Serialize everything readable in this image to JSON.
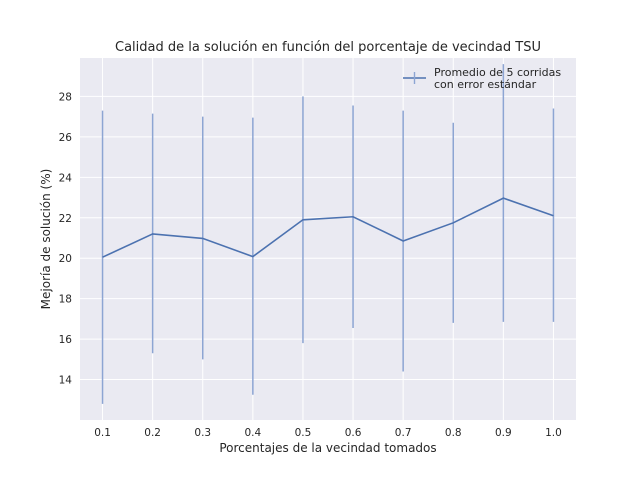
{
  "chart_data": {
    "type": "line",
    "title": "Calidad de la solución en función del porcentaje de vecindad TSU",
    "xlabel": "Porcentajes de la vecindad tomados",
    "ylabel": "Mejoría de solución (%)",
    "x": [
      0.1,
      0.2,
      0.3,
      0.4,
      0.5,
      0.6,
      0.7,
      0.8,
      0.9,
      1.0
    ],
    "x_tick_labels": [
      "0.1",
      "0.2",
      "0.3",
      "0.4",
      "0.5",
      "0.6",
      "0.7",
      "0.8",
      "0.9",
      "1.0"
    ],
    "xlim": [
      0.055,
      1.045
    ],
    "y_ticks": [
      14,
      16,
      18,
      20,
      22,
      24,
      26,
      28
    ],
    "ylim": [
      12.0,
      29.9
    ],
    "grid": true,
    "legend_position": "upper-right",
    "series": [
      {
        "name": "Promedio de 5 corridas\ncon error estándar",
        "values": [
          20.05,
          21.2,
          20.98,
          20.08,
          21.9,
          22.05,
          20.85,
          21.75,
          22.97,
          22.1
        ],
        "err_low": [
          12.8,
          15.3,
          15.0,
          13.25,
          15.8,
          16.55,
          14.4,
          16.8,
          16.85,
          16.85
        ],
        "err_high": [
          27.3,
          27.15,
          27.0,
          26.95,
          28.0,
          27.55,
          27.3,
          26.7,
          29.6,
          27.4
        ],
        "color": "#4c72b0"
      }
    ],
    "colors": {
      "plot_bg": "#eaeaf2",
      "grid": "#ffffff",
      "errorbar": "#8da5d3"
    }
  }
}
